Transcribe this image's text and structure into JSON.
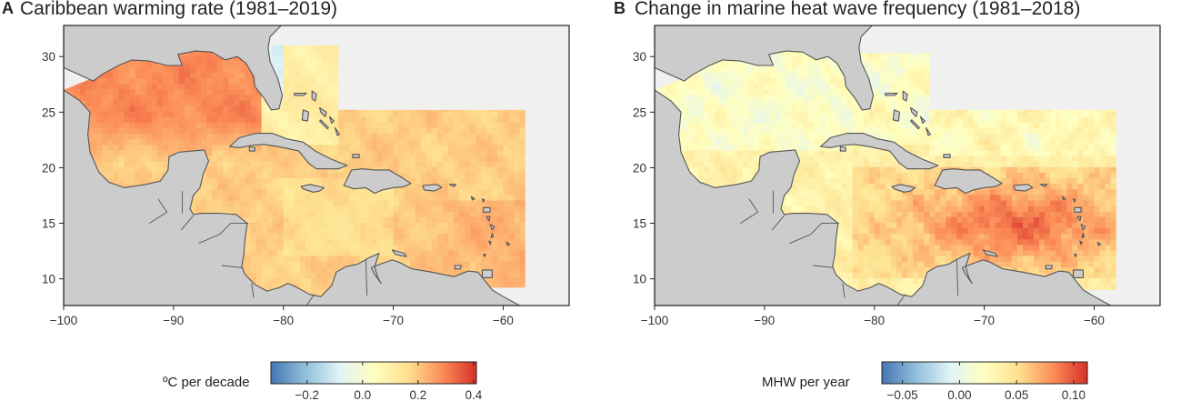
{
  "colors": {
    "land": "#cccccc",
    "land_edge": "#555555",
    "nodata": "#f0f0f0",
    "border": "#222222"
  },
  "map_extent": {
    "lon": [
      -100,
      -54
    ],
    "lat": [
      7.6,
      32.8
    ]
  },
  "panels": [
    {
      "id": "A",
      "letter": "A",
      "title": "Caribbean warming rate (1981–2019)",
      "x_ticks": [
        -100,
        -90,
        -80,
        -70,
        -60
      ],
      "x_tick_labels": [
        "−100",
        "−90",
        "−80",
        "−70",
        "−60"
      ],
      "y_ticks": [
        10,
        15,
        20,
        25,
        30
      ],
      "y_tick_labels": [
        "10",
        "15",
        "20",
        "25",
        "30"
      ],
      "colorbar": {
        "label": "ºC per decade",
        "range": [
          -0.33,
          0.41
        ],
        "ticks": [
          -0.2,
          0.0,
          0.2,
          0.4
        ],
        "tick_labels": [
          "−0.2",
          "0.0",
          "0.2",
          "0.4"
        ],
        "colormap": [
          "#4575b4",
          "#91bfdb",
          "#e0f3f8",
          "#ffffbf",
          "#fee090",
          "#fc8d59",
          "#d73027"
        ]
      },
      "field": {
        "base": 0.19,
        "gulf": 0.29,
        "east": 0.11,
        "coast_low": -0.05
      }
    },
    {
      "id": "B",
      "letter": "B",
      "title": "Change in marine heat wave frequency (1981–2018)",
      "x_ticks": [
        -100,
        -90,
        -80,
        -70,
        -60
      ],
      "x_tick_labels": [
        "−100",
        "−90",
        "−80",
        "−70",
        "−60"
      ],
      "y_ticks": [
        10,
        15,
        20,
        25,
        30
      ],
      "y_tick_labels": [
        "10",
        "15",
        "20",
        "25",
        "30"
      ],
      "colorbar": {
        "label": "MHW per year",
        "range": [
          -0.068,
          0.112
        ],
        "ticks": [
          -0.05,
          0.0,
          0.05,
          0.1
        ],
        "tick_labels": [
          "−0.05",
          "0.00",
          "0.05",
          "0.10"
        ],
        "colormap": [
          "#4575b4",
          "#91bfdb",
          "#e0f3f8",
          "#ffffbf",
          "#fee090",
          "#fc8d59",
          "#d73027"
        ]
      },
      "field": {
        "base": 0.035,
        "caribbean": 0.045,
        "gulf": 0.0
      }
    }
  ]
}
